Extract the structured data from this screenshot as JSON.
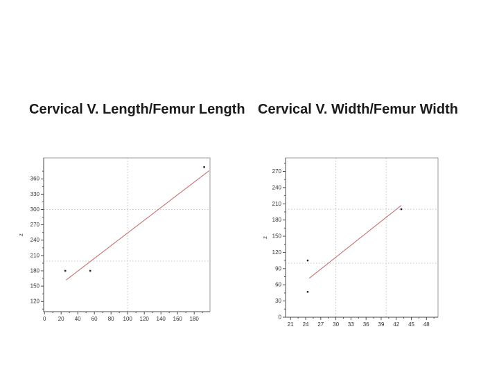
{
  "titles": {
    "left": "Cervical V. Length/Femur Length",
    "right": "Cervical V. Width/Femur Width"
  },
  "colors": {
    "background": "#ffffff",
    "title_text": "#1a1a1a",
    "plot_border": "#999999",
    "axis_line": "#4a4a4a",
    "tick_label": "#333333",
    "crosshair_dotted": "#c2c2c2",
    "fit_line_red": "#c47070",
    "data_point": "#1a1a1a"
  },
  "chart_data": [
    {
      "type": "scatter",
      "title": "Cervical V. Length/Femur Length",
      "xlabel": "",
      "ylabel": "z",
      "xlim": [
        -1,
        199
      ],
      "ylim": [
        100,
        401
      ],
      "x_ticks": [
        0,
        20,
        40,
        60,
        80,
        100,
        120,
        140,
        160,
        180
      ],
      "y_ticks": [
        120,
        150,
        180,
        210,
        240,
        270,
        300,
        330,
        360
      ],
      "points": [
        [
          25,
          180
        ],
        [
          55,
          180
        ],
        [
          192,
          383
        ]
      ],
      "fit_line": {
        "x1": 26,
        "y1": 162,
        "x2": 198,
        "y2": 376
      },
      "crosshair_x": [
        100
      ],
      "crosshair_y": [
        300,
        199
      ],
      "grid": "dotted-crosshair",
      "legend": false
    },
    {
      "type": "scatter",
      "title": "Cervical V. Width/Femur Width",
      "xlabel": "",
      "ylabel": "z",
      "xlim": [
        20,
        50.3
      ],
      "ylim": [
        0,
        295
      ],
      "x_ticks": [
        21,
        24,
        27,
        30,
        33,
        36,
        39,
        42,
        45,
        48
      ],
      "y_ticks": [
        0,
        30,
        60,
        90,
        120,
        150,
        180,
        210,
        240,
        270
      ],
      "points": [
        [
          24.4,
          105
        ],
        [
          24.4,
          47
        ],
        [
          43,
          200
        ]
      ],
      "fit_line": {
        "x1": 24.7,
        "y1": 72,
        "x2": 43,
        "y2": 207
      },
      "crosshair_x": [
        30,
        40
      ],
      "crosshair_y": [
        200,
        100
      ],
      "grid": "dotted-crosshair",
      "legend": false
    }
  ]
}
